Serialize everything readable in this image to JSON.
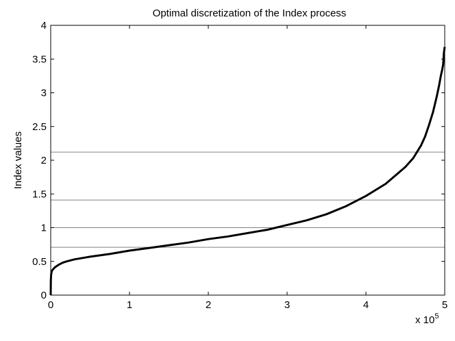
{
  "chart_data": {
    "type": "line",
    "title": "Optimal discretization of the Index process",
    "xlabel": "",
    "ylabel": "Index values",
    "x_multiplier_label": {
      "base": "x 10",
      "exponent": "5"
    },
    "xlim": [
      0,
      5
    ],
    "ylim": [
      0,
      4
    ],
    "x_ticks": [
      "0",
      "1",
      "2",
      "3",
      "4",
      "5"
    ],
    "y_ticks": [
      "0",
      "0.5",
      "1",
      "1.5",
      "2",
      "2.5",
      "3",
      "3.5",
      "4"
    ],
    "grid": false,
    "line_color": "#000000",
    "threshold_color": "#808080",
    "thresholds": [
      0.71,
      1.0,
      1.41,
      2.12
    ],
    "series": [
      {
        "x": [
          0,
          0.002,
          0.005,
          0.01,
          0.02,
          0.05,
          0.1,
          0.15,
          0.2,
          0.3,
          0.5,
          0.75,
          1.0,
          1.25,
          1.5,
          1.75,
          2.0,
          2.25,
          2.5,
          2.75,
          3.0,
          3.25,
          3.5,
          3.75,
          4.0,
          4.25,
          4.5,
          4.6,
          4.7,
          4.75,
          4.8,
          4.85,
          4.9,
          4.93,
          4.95,
          4.97,
          4.98,
          4.99,
          5.0
        ],
        "y": [
          0.0,
          0.22,
          0.3,
          0.34,
          0.37,
          0.41,
          0.45,
          0.48,
          0.5,
          0.53,
          0.57,
          0.61,
          0.66,
          0.7,
          0.74,
          0.78,
          0.83,
          0.87,
          0.92,
          0.97,
          1.04,
          1.11,
          1.2,
          1.32,
          1.47,
          1.65,
          1.9,
          2.03,
          2.22,
          2.35,
          2.52,
          2.71,
          2.95,
          3.12,
          3.25,
          3.35,
          3.42,
          3.6,
          3.68
        ]
      }
    ]
  }
}
